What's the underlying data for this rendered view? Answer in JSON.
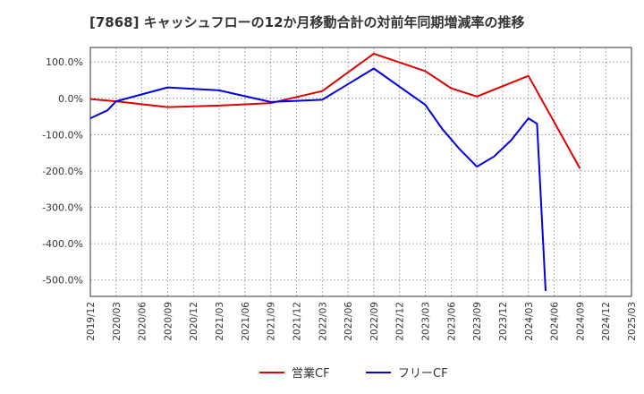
{
  "title": "[7868]  キャッシュフローの12か月移動合計の対前年同期増減率の推移",
  "chart_data": {
    "type": "line",
    "title": "[7868]  キャッシュフローの12か月移動合計の対前年同期増減率の推移",
    "xlabel": "",
    "ylabel": "",
    "x_ticks": [
      "2019/12",
      "2020/03",
      "2020/06",
      "2020/09",
      "2020/12",
      "2021/03",
      "2021/06",
      "2021/09",
      "2021/12",
      "2022/03",
      "2022/06",
      "2022/09",
      "2022/12",
      "2023/03",
      "2023/06",
      "2023/09",
      "2023/12",
      "2024/03",
      "2024/06",
      "2024/09",
      "2024/12",
      "2025/03"
    ],
    "y_ticks": [
      100,
      0,
      -100,
      -200,
      -300,
      -400,
      -500
    ],
    "y_tick_labels": [
      "100.0%",
      "0.0%",
      "-100.0%",
      "-200.0%",
      "-300.0%",
      "-400.0%",
      "-500.0%"
    ],
    "ylim": [
      -545,
      140
    ],
    "grid": "dashed",
    "legend_position": "bottom",
    "series": [
      {
        "name": "営業CF",
        "color": "#e00000",
        "points": [
          [
            "2019/12",
            -2
          ],
          [
            "2020/03",
            -8
          ],
          [
            "2020/09",
            -24
          ],
          [
            "2021/03",
            -20
          ],
          [
            "2021/09",
            -13
          ],
          [
            "2022/03",
            20
          ],
          [
            "2022/09",
            123
          ],
          [
            "2023/03",
            75
          ],
          [
            "2023/06",
            28
          ],
          [
            "2023/09",
            5
          ],
          [
            "2024/03",
            62
          ],
          [
            "2024/09",
            -193
          ]
        ]
      },
      {
        "name": "フリーCF",
        "color": "#0000e0",
        "points": [
          [
            "2019/12",
            -55
          ],
          [
            "2020/02",
            -33
          ],
          [
            "2020/03",
            -8
          ],
          [
            "2020/09",
            30
          ],
          [
            "2021/03",
            22
          ],
          [
            "2021/09",
            -10
          ],
          [
            "2022/03",
            -4
          ],
          [
            "2022/09",
            82
          ],
          [
            "2023/03",
            -18
          ],
          [
            "2023/05",
            -85
          ],
          [
            "2023/07",
            -140
          ],
          [
            "2023/09",
            -188
          ],
          [
            "2023/11",
            -160
          ],
          [
            "2024/01",
            -115
          ],
          [
            "2024/03",
            -55
          ],
          [
            "2024/04",
            -70
          ],
          [
            "2024/05",
            -530
          ]
        ]
      }
    ]
  }
}
